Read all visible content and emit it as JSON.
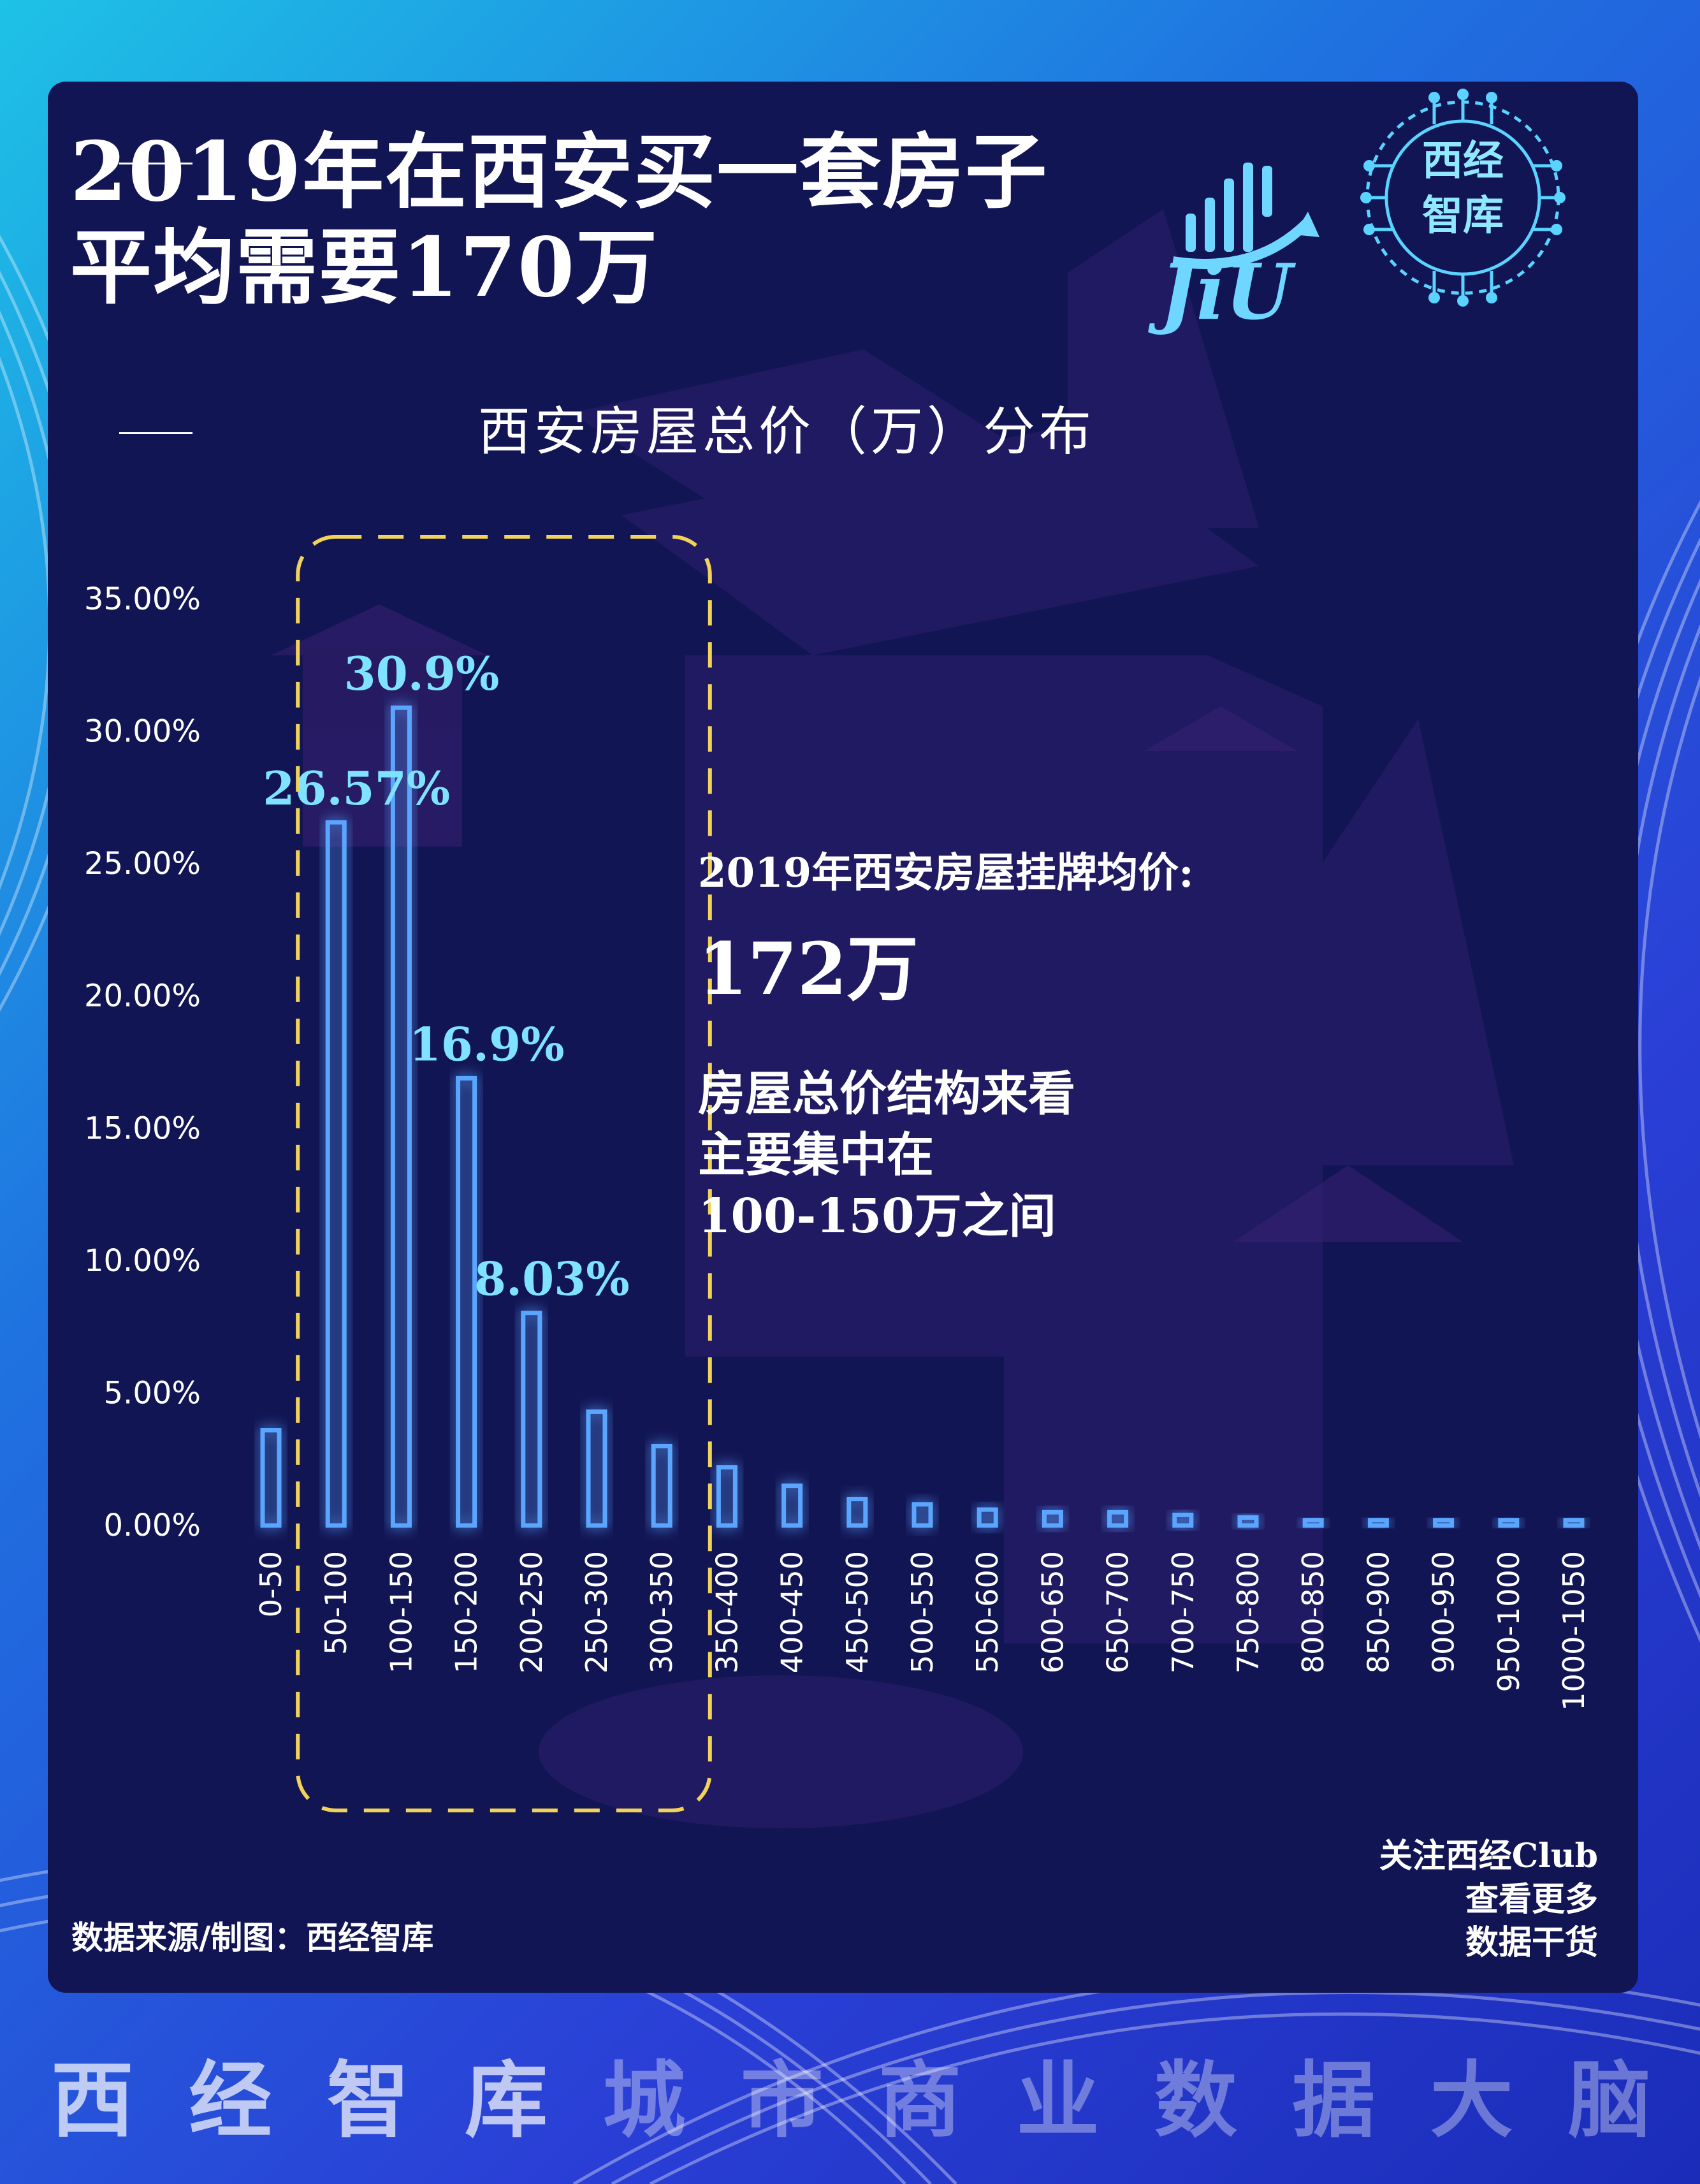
{
  "title_lines": [
    "2019年在西安买一套房子",
    "平均需要170万"
  ],
  "logo": {
    "jiu": "JiU",
    "badge_line1": "西经",
    "badge_line2": "智库"
  },
  "chart_title": "西安房屋总价（万）分布",
  "annotation": {
    "label": "2019年西安房屋挂牌均价:",
    "value": "172万",
    "lines": [
      "房屋总价结构来看",
      "主要集中在",
      "100-150万之间"
    ]
  },
  "source": "数据来源/制图：西经智库",
  "follow_lines": [
    "关注西经Club",
    "查看更多",
    "数据干货"
  ],
  "footer_chars": [
    "西",
    "经",
    "智",
    "库",
    "城",
    "市",
    "商",
    "业",
    "数",
    "据",
    "大",
    "脑"
  ],
  "colors": {
    "bar_stroke": "#5aa6ff",
    "bar_glow": "#2f7bff",
    "value_label": "#7fe3ff",
    "highlight_box": "#f2d35a",
    "axis_text": "#ffffff"
  },
  "chart_data": {
    "type": "bar",
    "title": "西安房屋总价（万）分布",
    "xlabel": "",
    "ylabel": "",
    "ylim": [
      0,
      35
    ],
    "yticks": [
      "0.00%",
      "5.00%",
      "10.00%",
      "15.00%",
      "20.00%",
      "25.00%",
      "30.00%",
      "35.00%"
    ],
    "categories": [
      "0-50",
      "50-100",
      "100-150",
      "150-200",
      "200-250",
      "250-300",
      "300-350",
      "350-400",
      "400-450",
      "450-500",
      "500-550",
      "550-600",
      "600-650",
      "650-700",
      "700-750",
      "750-800",
      "800-850",
      "850-900",
      "900-950",
      "950-1000",
      "1000-1050"
    ],
    "values": [
      3.6,
      26.57,
      30.9,
      16.9,
      8.03,
      4.3,
      3.0,
      2.2,
      1.5,
      1.0,
      0.8,
      0.6,
      0.5,
      0.5,
      0.4,
      0.3,
      0.2,
      0.2,
      0.2,
      0.2,
      0.2
    ],
    "data_labels": [
      {
        "index": 1,
        "text": "26.57%"
      },
      {
        "index": 2,
        "text": "30.9%"
      },
      {
        "index": 3,
        "text": "16.9%"
      },
      {
        "index": 4,
        "text": "8.03%"
      }
    ],
    "highlight_range": [
      1,
      4
    ],
    "grid": false,
    "legend": "none"
  }
}
